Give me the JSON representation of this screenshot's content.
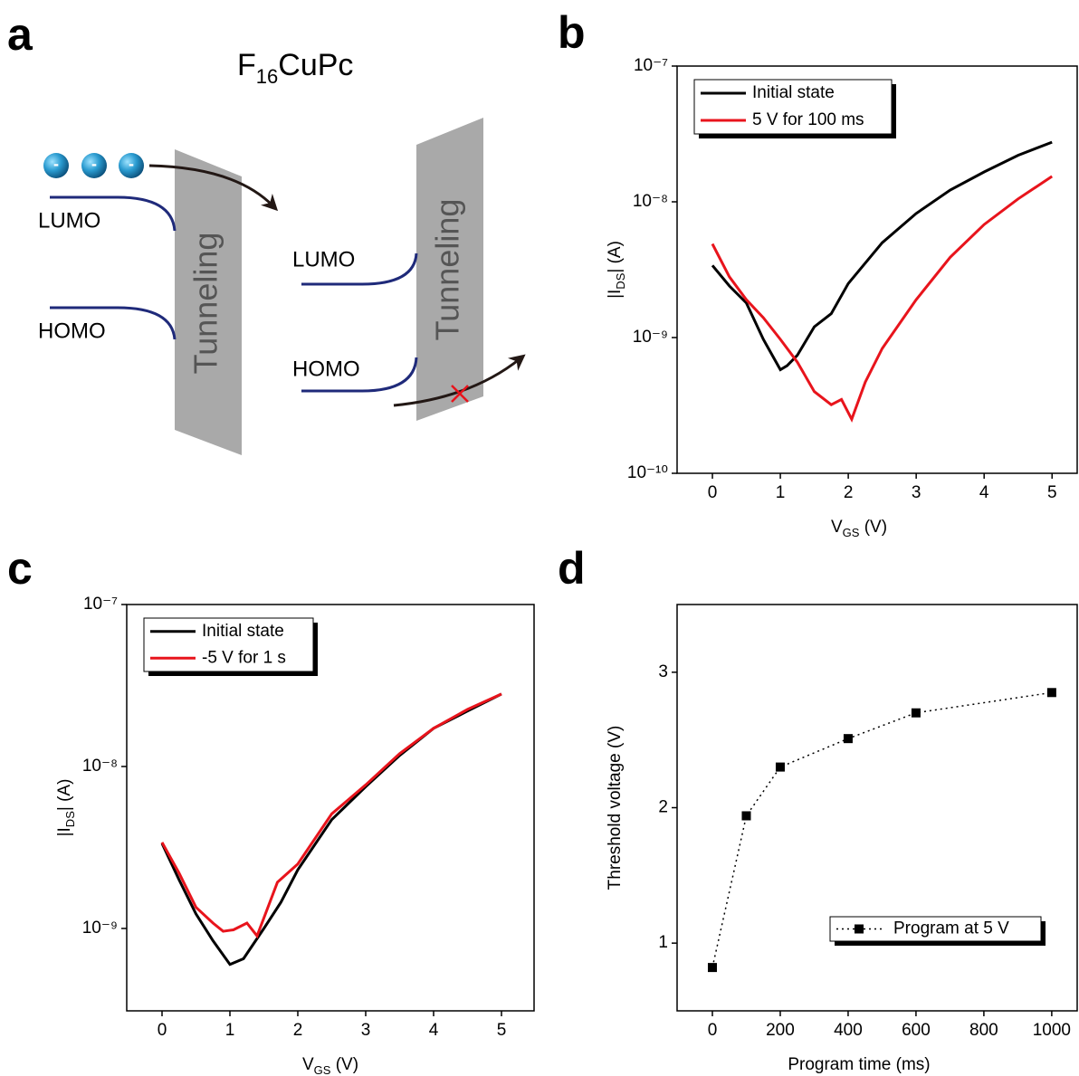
{
  "panel_labels": [
    "a",
    "b",
    "c",
    "d"
  ],
  "diagram": {
    "title_parts": [
      "F",
      "16",
      "CuPc"
    ],
    "electron_label": "-",
    "left_lumo": "LUMO",
    "left_homo": "HOMO",
    "left_barrier": "Tunneling",
    "right_lumo": "LUMO",
    "right_homo": "HOMO",
    "right_barrier": "Tunneling"
  },
  "chart_data": [
    {
      "type": "line",
      "log_y": true,
      "legend": "upper left",
      "x_label": [
        "V",
        "GS",
        " (V)"
      ],
      "y_label": [
        "|I",
        "DS",
        "| (A)"
      ],
      "xlim": [
        -0.52,
        5.37
      ],
      "ylim": [
        1e-10,
        1e-07
      ],
      "xticks": [
        0,
        1,
        2,
        3,
        4,
        5
      ],
      "yticks": [
        {
          "value": 1e-10,
          "label": "10⁻¹⁰"
        },
        {
          "value": 1e-09,
          "label": "10⁻⁹"
        },
        {
          "value": 1e-08,
          "label": "10⁻⁸"
        },
        {
          "value": 1e-07,
          "label": "10⁻⁷"
        }
      ],
      "series": [
        {
          "name": "Initial state",
          "color": "#000000",
          "x": [
            0,
            0.25,
            0.5,
            0.75,
            1.0,
            1.1,
            1.25,
            1.5,
            1.75,
            2,
            2.5,
            3,
            3.5,
            4,
            4.5,
            5
          ],
          "values": [
            3.4e-09,
            2.4e-09,
            1.8e-09,
            9.7e-10,
            5.8e-10,
            6.2e-10,
            7.4e-10,
            1.2e-09,
            1.5e-09,
            2.5e-09,
            5e-09,
            8.2e-09,
            1.22e-08,
            1.66e-08,
            2.2e-08,
            2.75e-08
          ]
        },
        {
          "name": "5 V for 100 ms",
          "color": "#e8141c",
          "x": [
            0,
            0.25,
            0.5,
            0.75,
            1.0,
            1.25,
            1.5,
            1.75,
            1.9,
            2.05,
            2.25,
            2.5,
            3,
            3.5,
            4,
            4.5,
            5
          ],
          "values": [
            4.9e-09,
            2.8e-09,
            1.9e-09,
            1.4e-09,
            9.7e-10,
            6.6e-10,
            4e-10,
            3.2e-10,
            3.5e-10,
            2.5e-10,
            4.7e-10,
            8.3e-10,
            1.9e-09,
            3.9e-09,
            6.8e-09,
            1.05e-08,
            1.54e-08
          ]
        }
      ]
    },
    {
      "type": "line",
      "log_y": true,
      "legend": "upper left",
      "x_label": [
        "V",
        "GS",
        " (V)"
      ],
      "y_label": [
        "|I",
        "DS",
        "| (A)"
      ],
      "xlim": [
        -0.52,
        5.48
      ],
      "ylim": [
        3.1e-10,
        1e-07
      ],
      "xticks": [
        0,
        1,
        2,
        3,
        4,
        5
      ],
      "yticks": [
        {
          "value": 1e-09,
          "label": "10⁻⁹"
        },
        {
          "value": 1e-08,
          "label": "10⁻⁸"
        },
        {
          "value": 1e-07,
          "label": "10⁻⁷"
        }
      ],
      "series": [
        {
          "name": "Initial state",
          "color": "#000000",
          "x": [
            0,
            0.25,
            0.5,
            0.75,
            1.0,
            1.2,
            1.5,
            1.75,
            2,
            2.5,
            3,
            3.5,
            4,
            4.5,
            5
          ],
          "values": [
            3.35e-09,
            2e-09,
            1.23e-09,
            8.4e-10,
            6e-10,
            6.5e-10,
            1e-09,
            1.45e-09,
            2.3e-09,
            4.7e-09,
            7.5e-09,
            1.17e-08,
            1.72e-08,
            2.2e-08,
            2.8e-08
          ]
        },
        {
          "name": "-5 V for 1 s",
          "color": "#e8141c",
          "x": [
            0,
            0.25,
            0.5,
            0.75,
            0.9,
            1.05,
            1.25,
            1.4,
            1.7,
            2,
            2.5,
            3,
            3.5,
            4,
            4.5,
            5
          ],
          "values": [
            3.4e-09,
            2.2e-09,
            1.35e-09,
            1.08e-09,
            9.6e-10,
            9.8e-10,
            1.08e-09,
            9e-10,
            1.93e-09,
            2.5e-09,
            5.1e-09,
            7.7e-09,
            1.2e-08,
            1.72e-08,
            2.25e-08,
            2.8e-08
          ]
        }
      ]
    },
    {
      "type": "scatter",
      "log_y": false,
      "legend": "lower right",
      "x_label": "Program time (ms)",
      "y_label": "Threshold voltage (V)",
      "xlim": [
        -104,
        1075
      ],
      "ylim": [
        0.5,
        3.5
      ],
      "xticks": [
        0,
        200,
        400,
        600,
        800,
        1000
      ],
      "yticks": [
        1,
        2,
        3
      ],
      "series": [
        {
          "name": "Program at 5 V",
          "color": "#000000",
          "marker": "square",
          "linestyle": "dotted",
          "x": [
            0,
            100,
            200,
            400,
            600,
            1000
          ],
          "values": [
            0.82,
            1.94,
            2.3,
            2.51,
            2.7,
            2.85
          ]
        }
      ]
    }
  ]
}
